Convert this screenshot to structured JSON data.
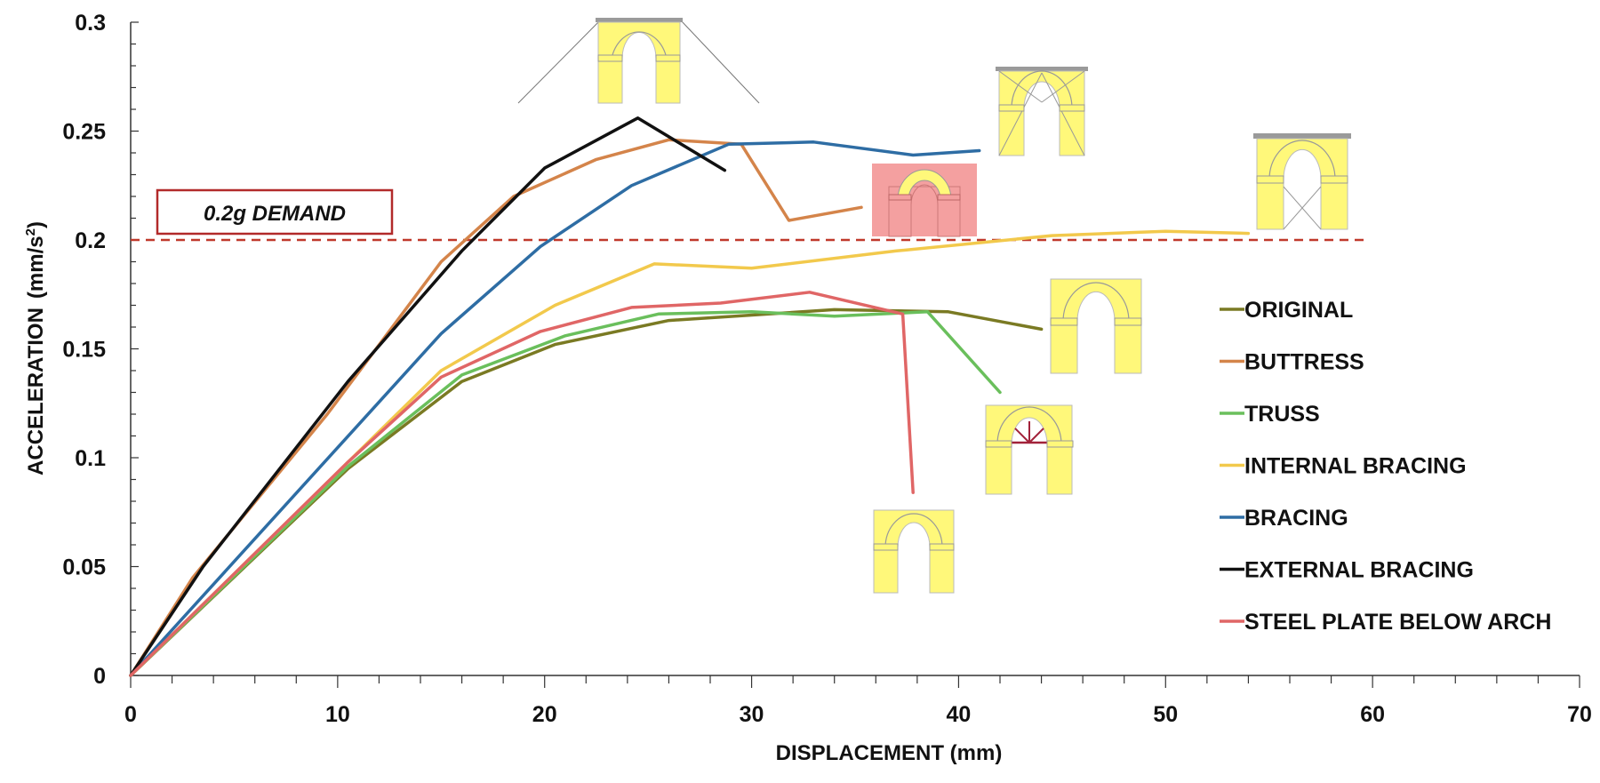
{
  "chart_data": {
    "type": "line",
    "xlabel": "DISPLACEMENT (mm)",
    "ylabel": "ACCELERATION",
    "ylabel_unit": "(mm/s",
    "ylabel_sup": "2",
    "ylabel_close": ")",
    "xlim": [
      0,
      70
    ],
    "ylim": [
      0,
      0.3
    ],
    "x_ticks": [
      "0",
      "10",
      "20",
      "30",
      "40",
      "50",
      "60",
      "70"
    ],
    "y_ticks": [
      "0",
      "0.05",
      "0.1",
      "0.15",
      "0.2",
      "0.25",
      "0.3"
    ],
    "grid": false,
    "legend_position": "right",
    "demand": {
      "label": "0.2g DEMAND",
      "value": 0.2,
      "color": "#c0392b"
    },
    "series": [
      {
        "name": "ORIGINAL",
        "color": "#7a7a23",
        "points": [
          [
            0,
            0
          ],
          [
            10.5,
            0.095
          ],
          [
            16,
            0.135
          ],
          [
            20.5,
            0.152
          ],
          [
            26,
            0.163
          ],
          [
            34,
            0.168
          ],
          [
            39.5,
            0.167
          ],
          [
            44,
            0.159
          ]
        ]
      },
      {
        "name": "BUTTRESS",
        "color": "#d4844a",
        "points": [
          [
            0,
            0
          ],
          [
            3,
            0.045
          ],
          [
            9.5,
            0.12
          ],
          [
            15,
            0.19
          ],
          [
            18.5,
            0.22
          ],
          [
            22.5,
            0.237
          ],
          [
            26,
            0.246
          ],
          [
            29.5,
            0.244
          ],
          [
            31.8,
            0.209
          ],
          [
            35.3,
            0.215
          ]
        ]
      },
      {
        "name": "TRUSS",
        "color": "#6abf5c",
        "points": [
          [
            0,
            0
          ],
          [
            10.5,
            0.096
          ],
          [
            16,
            0.138
          ],
          [
            21,
            0.156
          ],
          [
            25.5,
            0.166
          ],
          [
            30,
            0.167
          ],
          [
            34,
            0.165
          ],
          [
            38.5,
            0.167
          ],
          [
            42,
            0.13
          ]
        ]
      },
      {
        "name": "INTERNAL BRACING",
        "color": "#f2c94c",
        "points": [
          [
            0,
            0
          ],
          [
            15,
            0.14
          ],
          [
            20.5,
            0.17
          ],
          [
            25.3,
            0.189
          ],
          [
            30,
            0.187
          ],
          [
            37,
            0.195
          ],
          [
            44.5,
            0.202
          ],
          [
            50,
            0.204
          ],
          [
            54,
            0.203
          ]
        ]
      },
      {
        "name": "BRACING",
        "color": "#2e6da4",
        "points": [
          [
            0,
            0
          ],
          [
            15,
            0.157
          ],
          [
            19.8,
            0.197
          ],
          [
            24.2,
            0.225
          ],
          [
            28.9,
            0.244
          ],
          [
            33,
            0.245
          ],
          [
            37.8,
            0.239
          ],
          [
            41,
            0.241
          ]
        ]
      },
      {
        "name": "EXTERNAL BRACING",
        "color": "#111111",
        "points": [
          [
            0,
            0
          ],
          [
            3.5,
            0.05
          ],
          [
            10.5,
            0.135
          ],
          [
            16,
            0.195
          ],
          [
            20,
            0.233
          ],
          [
            24.5,
            0.256
          ],
          [
            28.7,
            0.232
          ]
        ]
      },
      {
        "name": "STEEL PLATE BELOW ARCH",
        "color": "#e06666",
        "points": [
          [
            0,
            0
          ],
          [
            10.5,
            0.098
          ],
          [
            15,
            0.137
          ],
          [
            19.8,
            0.158
          ],
          [
            24.2,
            0.169
          ],
          [
            28.5,
            0.171
          ],
          [
            32.8,
            0.176
          ],
          [
            37.3,
            0.166
          ],
          [
            37.8,
            0.084
          ]
        ]
      }
    ]
  },
  "colors": {
    "arch_fill": "#fff87a",
    "arch_fill_highlight": "#f4a0a0",
    "steel_beam": "#9a9a9a",
    "truss_red": "#a2223a"
  },
  "illustrations": [
    "external-bracing-arch",
    "internal-bracing-arch",
    "buttress-arch",
    "bracing-arch",
    "original-arch",
    "truss-arch",
    "steel-plate-arch"
  ]
}
